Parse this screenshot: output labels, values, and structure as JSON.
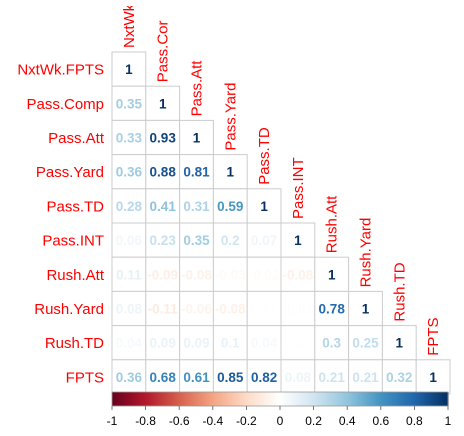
{
  "chart_data": {
    "type": "heatmap",
    "variant": "lower-triangle correlation matrix",
    "variables": [
      "NxtWk.FPTS",
      "Pass.Comp",
      "Pass.Att",
      "Pass.Yard",
      "Pass.TD",
      "Pass.INT",
      "Rush.Att",
      "Rush.Yard",
      "Rush.TD",
      "FPTS"
    ],
    "column_labels": [
      "NxtWk",
      "Pass.Cor",
      "Pass.Att",
      "Pass.Yard",
      "Pass.TD",
      "Pass.INT",
      "Rush.Att",
      "Rush.Yard",
      "Rush.TD",
      "FPTS"
    ],
    "matrix": [
      [
        1
      ],
      [
        0.35,
        1
      ],
      [
        0.33,
        0.93,
        1
      ],
      [
        0.36,
        0.88,
        0.81,
        1
      ],
      [
        0.28,
        0.41,
        0.31,
        0.59,
        1
      ],
      [
        0.06,
        0.23,
        0.35,
        0.2,
        0.07,
        1
      ],
      [
        0.11,
        -0.09,
        -0.08,
        -0.03,
        -0.02,
        -0.08,
        1
      ],
      [
        0.08,
        -0.11,
        -0.06,
        -0.08,
        0.01,
        -0.01,
        0.78,
        1
      ],
      [
        0.04,
        0.09,
        0.09,
        0.1,
        0.04,
        0.01,
        0.3,
        0.25,
        1
      ],
      [
        0.36,
        0.68,
        0.61,
        0.85,
        0.82,
        0.08,
        0.21,
        0.21,
        0.32,
        1
      ]
    ],
    "display_labels": [
      [
        "1"
      ],
      [
        "0.35",
        "1"
      ],
      [
        "0.33",
        "0.93",
        "1"
      ],
      [
        "0.36",
        "0.88",
        "0.81",
        "1"
      ],
      [
        "0.28",
        "0.41",
        "0.31",
        "0.59",
        "1"
      ],
      [
        "0.06",
        "0.23",
        "0.35",
        "0.2",
        "0.07",
        "1"
      ],
      [
        "0.11",
        "-0.09",
        "-0.08",
        "-0.03",
        "-0.02",
        "-0.08",
        "1"
      ],
      [
        "0.08",
        "-0.11",
        "-0.06",
        "-0.08",
        "0.01",
        "-0.01",
        "0.78",
        "1"
      ],
      [
        "0.04",
        "0.09",
        "0.09",
        "0.1",
        "0.04",
        "0.01",
        "0.3",
        "0.25",
        "1"
      ],
      [
        "0.36",
        "0.68",
        "0.61",
        "0.85",
        "0.82",
        "0.08",
        "0.21",
        "0.21",
        "0.32",
        "1"
      ]
    ],
    "color_scale": {
      "range": [
        -1,
        1
      ],
      "colors": [
        "#67001F",
        "#B2182B",
        "#D6604D",
        "#F4A582",
        "#FDDBC7",
        "#FFFFFF",
        "#D1E5F0",
        "#92C5DE",
        "#4393C3",
        "#2166AC",
        "#053061"
      ]
    },
    "colorbar_ticks": [
      "-1",
      "-0.8",
      "-0.6",
      "-0.4",
      "-0.2",
      "0",
      "0.2",
      "0.4",
      "0.6",
      "0.8",
      "1"
    ],
    "label_color": "#FF0000",
    "grid_color": "#CCCCCC",
    "title": "",
    "xlabel": "",
    "ylabel": ""
  }
}
